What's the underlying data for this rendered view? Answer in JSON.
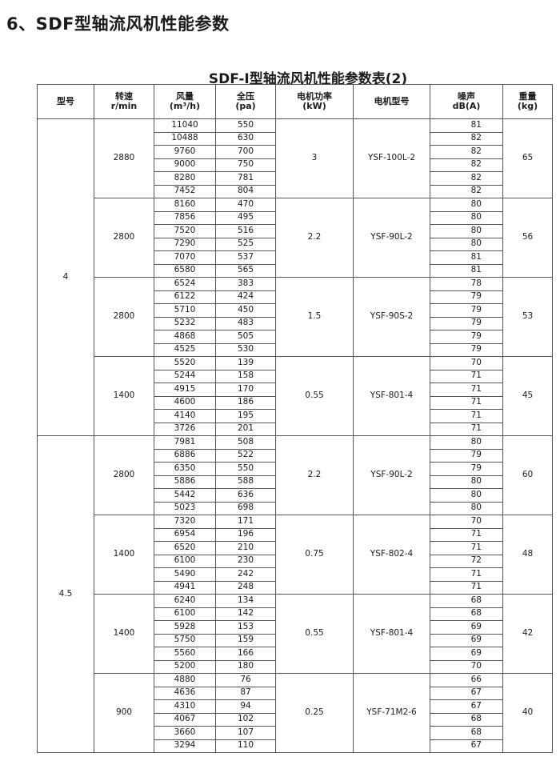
{
  "title": "6、SDF型轴流风机性能参数",
  "subtitle": "SDF-I型轴流风机性能参数表(2)",
  "headers": [
    {
      "line1": "型号",
      "line2": ""
    },
    {
      "line1": "转速",
      "line2": "r/min"
    },
    {
      "line1": "风量",
      "line2": "(m³/h)"
    },
    {
      "line1": "全压",
      "line2": "(pa)"
    },
    {
      "line1": "电机功率",
      "line2": "(kW)"
    },
    {
      "line1": "电机型号",
      "line2": ""
    },
    {
      "line1": "噪声",
      "line2": "dB(A)"
    },
    {
      "line1": "重量",
      "line2": "(kg)"
    }
  ],
  "models": [
    {
      "model": "4",
      "groups": [
        {
          "speed": "2880",
          "power": "3",
          "motor": "YSF-100L-2",
          "weight": "65",
          "rows": [
            [
              "11040",
              "550",
              "81"
            ],
            [
              "10488",
              "630",
              "82"
            ],
            [
              "9760",
              "700",
              "82"
            ],
            [
              "9000",
              "750",
              "82"
            ],
            [
              "8280",
              "781",
              "82"
            ],
            [
              "7452",
              "804",
              "82"
            ]
          ]
        },
        {
          "speed": "2800",
          "power": "2.2",
          "motor": "YSF-90L-2",
          "weight": "56",
          "rows": [
            [
              "8160",
              "470",
              "80"
            ],
            [
              "7856",
              "495",
              "80"
            ],
            [
              "7520",
              "516",
              "80"
            ],
            [
              "7290",
              "525",
              "80"
            ],
            [
              "7070",
              "537",
              "81"
            ],
            [
              "6580",
              "565",
              "81"
            ]
          ]
        },
        {
          "speed": "2800",
          "power": "1.5",
          "motor": "YSF-90S-2",
          "weight": "53",
          "rows": [
            [
              "6524",
              "383",
              "78"
            ],
            [
              "6122",
              "424",
              "79"
            ],
            [
              "5710",
              "450",
              "79"
            ],
            [
              "5232",
              "483",
              "79"
            ],
            [
              "4868",
              "505",
              "79"
            ],
            [
              "4525",
              "530",
              "79"
            ]
          ]
        },
        {
          "speed": "1400",
          "power": "0.55",
          "motor": "YSF-801-4",
          "weight": "45",
          "rows": [
            [
              "5520",
              "139",
              "70"
            ],
            [
              "5244",
              "158",
              "71"
            ],
            [
              "4915",
              "170",
              "71"
            ],
            [
              "4600",
              "186",
              "71"
            ],
            [
              "4140",
              "195",
              "71"
            ],
            [
              "3726",
              "201",
              "71"
            ]
          ]
        }
      ]
    },
    {
      "model": "4.5",
      "groups": [
        {
          "speed": "2800",
          "power": "2.2",
          "motor": "YSF-90L-2",
          "weight": "60",
          "rows": [
            [
              "7981",
              "508",
              "80"
            ],
            [
              "6886",
              "522",
              "79"
            ],
            [
              "6350",
              "550",
              "79"
            ],
            [
              "5886",
              "588",
              "80"
            ],
            [
              "5442",
              "636",
              "80"
            ],
            [
              "5023",
              "698",
              "80"
            ]
          ]
        },
        {
          "speed": "1400",
          "power": "0.75",
          "motor": "YSF-802-4",
          "weight": "48",
          "rows": [
            [
              "7320",
              "171",
              "70"
            ],
            [
              "6954",
              "196",
              "71"
            ],
            [
              "6520",
              "210",
              "71"
            ],
            [
              "6100",
              "230",
              "72"
            ],
            [
              "5490",
              "242",
              "71"
            ],
            [
              "4941",
              "248",
              "71"
            ]
          ]
        },
        {
          "speed": "1400",
          "power": "0.55",
          "motor": "YSF-801-4",
          "weight": "42",
          "rows": [
            [
              "6240",
              "134",
              "68"
            ],
            [
              "6100",
              "142",
              "68"
            ],
            [
              "5928",
              "153",
              "69"
            ],
            [
              "5750",
              "159",
              "69"
            ],
            [
              "5560",
              "166",
              "69"
            ],
            [
              "5200",
              "180",
              "70"
            ]
          ]
        },
        {
          "speed": "900",
          "power": "0.25",
          "motor": "YSF-71M2-6",
          "weight": "40",
          "rows": [
            [
              "4880",
              "76",
              "66"
            ],
            [
              "4636",
              "87",
              "67"
            ],
            [
              "4310",
              "94",
              "67"
            ],
            [
              "4067",
              "102",
              "68"
            ],
            [
              "3660",
              "107",
              "68"
            ],
            [
              "3294",
              "110",
              "67"
            ]
          ]
        }
      ]
    }
  ]
}
